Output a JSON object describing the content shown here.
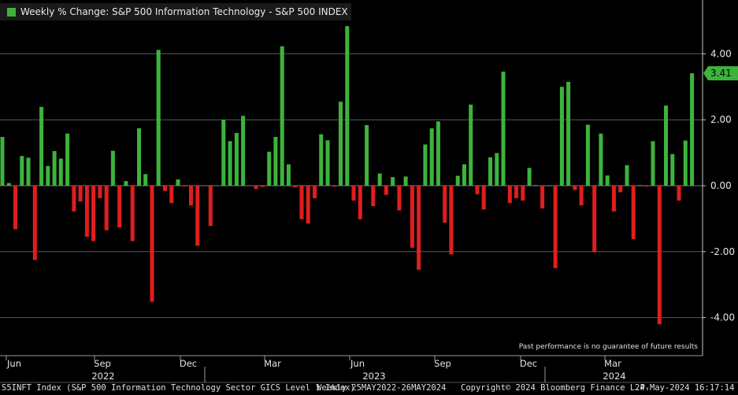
{
  "legend": {
    "label": "Weekly % Change: S&P 500 Information Technology - S&P 500 INDEX"
  },
  "disclaimer": "Past performance is no guarantee of future results",
  "footer": {
    "ticker": "S5INFT Index (S&P 500 Information Technology Sector GICS Level 1 Index)",
    "range": "Weekly 25MAY2022-26MAY2024",
    "copyright": "Copyright© 2024 Bloomberg Finance L.P.",
    "timestamp": "24-May-2024 16:17:14"
  },
  "chart_data": {
    "type": "bar",
    "title": "Weekly % Change: S&P 500 Information Technology - S&P 500 INDEX",
    "ylim": [
      -5.0,
      5.4
    ],
    "yticks": [
      4.0,
      2.0,
      0.0,
      -2.0,
      -4.0
    ],
    "ytick_labels": [
      "4.00",
      "2.00",
      "0.00",
      "-2.00",
      "-4.00"
    ],
    "last_value_label": "3.41",
    "month_labels": [
      "Jun",
      "Sep",
      "Dec",
      "Mar",
      "Jun",
      "Sep",
      "Dec",
      "Mar"
    ],
    "year_labels": [
      "2022",
      "2023",
      "2024"
    ],
    "positive_color": "#3cb43c",
    "negative_color": "#e01e1e",
    "grid": true,
    "values": [
      1.48,
      0.08,
      -1.32,
      0.9,
      0.85,
      -2.25,
      2.39,
      0.6,
      1.05,
      0.82,
      1.58,
      -0.78,
      -0.48,
      -1.55,
      -1.68,
      -0.38,
      -1.35,
      1.06,
      -1.27,
      0.14,
      -1.68,
      1.74,
      0.35,
      -3.52,
      4.12,
      -0.16,
      -0.53,
      0.19,
      -0.02,
      -0.6,
      -1.82,
      0.0,
      -1.22,
      0.0,
      2.0,
      1.35,
      1.6,
      2.12,
      0.0,
      -0.1,
      -0.04,
      1.03,
      1.48,
      4.23,
      0.65,
      -0.05,
      -1.02,
      -1.15,
      -0.38,
      1.56,
      1.38,
      -0.03,
      2.55,
      4.84,
      -0.45,
      -1.02,
      1.84,
      -0.62,
      0.37,
      -0.28,
      0.26,
      -0.75,
      0.28,
      -1.88,
      -2.55,
      1.25,
      1.74,
      1.95,
      -1.12,
      -2.08,
      0.3,
      0.65,
      2.46,
      -0.26,
      -0.72,
      0.86,
      0.99,
      3.46,
      -0.53,
      -0.38,
      -0.45,
      0.54,
      0.02,
      -0.69,
      0.01,
      -2.5,
      3.0,
      3.15,
      -0.13,
      -0.6,
      1.85,
      -2.02,
      1.58,
      0.31,
      -0.78,
      -0.2,
      0.62,
      -1.62,
      0.02,
      -0.02,
      1.35,
      -4.2,
      2.43,
      0.96,
      -0.45,
      1.37,
      3.41
    ]
  }
}
